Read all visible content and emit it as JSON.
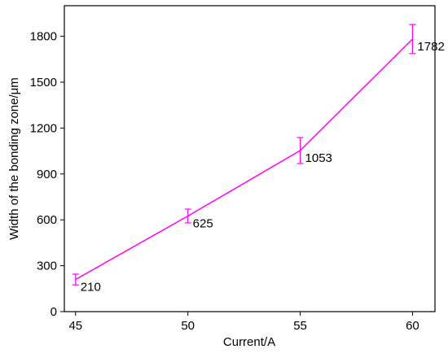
{
  "chart_data": {
    "type": "line",
    "xlabel": "Current/A",
    "ylabel": "Width of the bonding zone/μm",
    "x": [
      45,
      50,
      55,
      60
    ],
    "series": [
      {
        "color": "#ff00ff",
        "values": [
          210,
          625,
          1053,
          1782
        ],
        "errors": [
          35,
          45,
          85,
          95
        ]
      }
    ],
    "xlim": [
      44.5,
      61
    ],
    "xticks": [
      45,
      50,
      55,
      60
    ],
    "ylim": [
      0,
      2000
    ],
    "yticks": [
      0,
      300,
      600,
      900,
      1200,
      1500,
      1800
    ]
  }
}
